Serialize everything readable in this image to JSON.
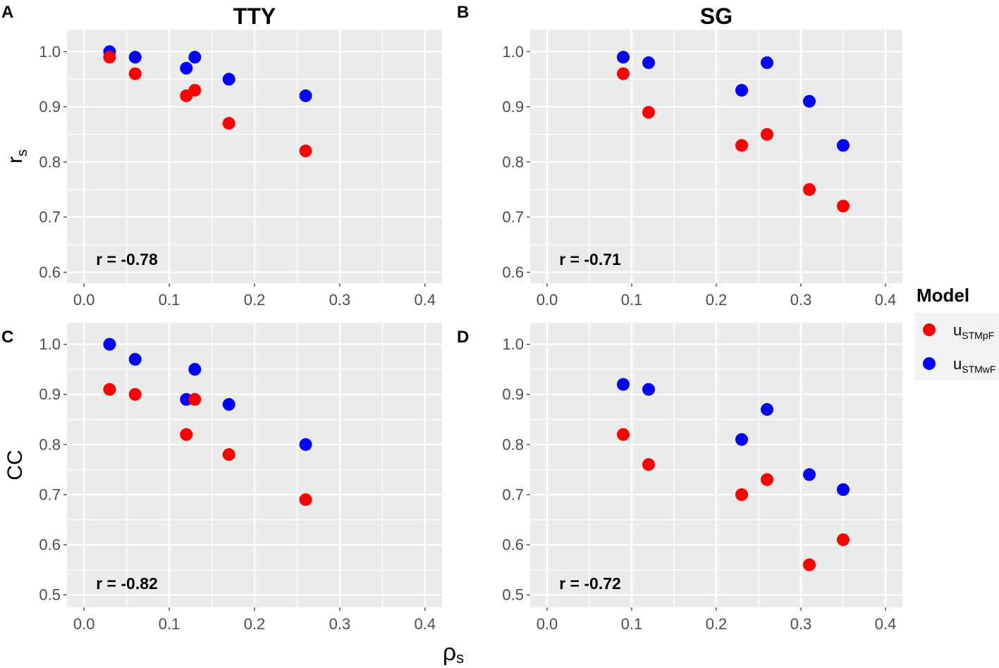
{
  "figure": {
    "xlabel": {
      "main": "ρ",
      "sub": "s"
    }
  },
  "legend": {
    "title": "Model",
    "items": [
      {
        "main": "u",
        "sub": "STMpF",
        "color": "#FF0000"
      },
      {
        "main": "u",
        "sub": "STMwF",
        "color": "#0000FF"
      }
    ]
  },
  "chart_data": [
    {
      "tag": "A",
      "title": "TTY",
      "type": "scatter",
      "ylabel": {
        "main": "r",
        "sub": "s"
      },
      "xlim": [
        -0.02,
        0.42
      ],
      "ylim": [
        0.58,
        1.04
      ],
      "x_ticks": [
        0,
        0.1,
        0.2,
        0.3,
        0.4
      ],
      "x_tick_labels": [
        "0.0",
        "0.1",
        "0.2",
        "0.3",
        "0.4"
      ],
      "y_ticks": [
        0.6,
        0.7,
        0.8,
        0.9,
        1.0
      ],
      "y_tick_labels": [
        "0.6",
        "0.7",
        "0.8",
        "0.9",
        "1.0"
      ],
      "grid": true,
      "annotation": "r = -0.78",
      "series": [
        {
          "legend_item": 0,
          "color": "#FF0000",
          "x": [
            0.03,
            0.06,
            0.12,
            0.13,
            0.17,
            0.26
          ],
          "y": [
            0.99,
            0.96,
            0.92,
            0.93,
            0.87,
            0.82
          ]
        },
        {
          "legend_item": 1,
          "color": "#0000FF",
          "x": [
            0.03,
            0.06,
            0.12,
            0.13,
            0.17,
            0.26
          ],
          "y": [
            1.0,
            0.99,
            0.97,
            0.99,
            0.95,
            0.92
          ]
        }
      ]
    },
    {
      "tag": "B",
      "title": "SG",
      "type": "scatter",
      "xlim": [
        -0.02,
        0.42
      ],
      "ylim": [
        0.58,
        1.04
      ],
      "x_ticks": [
        0,
        0.1,
        0.2,
        0.3,
        0.4
      ],
      "x_tick_labels": [
        "0.0",
        "0.1",
        "0.2",
        "0.3",
        "0.4"
      ],
      "y_ticks": [
        0.6,
        0.7,
        0.8,
        0.9,
        1.0
      ],
      "y_tick_labels": [
        "0.6",
        "0.7",
        "0.8",
        "0.9",
        "1.0"
      ],
      "grid": true,
      "annotation": "r = -0.71",
      "series": [
        {
          "legend_item": 0,
          "color": "#FF0000",
          "x": [
            0.09,
            0.12,
            0.23,
            0.26,
            0.31,
            0.35
          ],
          "y": [
            0.96,
            0.89,
            0.83,
            0.85,
            0.75,
            0.72
          ]
        },
        {
          "legend_item": 1,
          "color": "#0000FF",
          "x": [
            0.09,
            0.12,
            0.23,
            0.26,
            0.31,
            0.35
          ],
          "y": [
            0.99,
            0.98,
            0.93,
            0.98,
            0.91,
            0.83
          ]
        }
      ]
    },
    {
      "tag": "C",
      "type": "scatter",
      "ylabel": {
        "main": "CC"
      },
      "xlim": [
        -0.02,
        0.42
      ],
      "ylim": [
        0.475,
        1.043
      ],
      "x_ticks": [
        0,
        0.1,
        0.2,
        0.3,
        0.4
      ],
      "x_tick_labels": [
        "0.0",
        "0.1",
        "0.2",
        "0.3",
        "0.4"
      ],
      "y_ticks": [
        0.5,
        0.6,
        0.7,
        0.8,
        0.9,
        1.0
      ],
      "y_tick_labels": [
        "0.5",
        "0.6",
        "0.7",
        "0.8",
        "0.9",
        "1.0"
      ],
      "grid": true,
      "annotation": "r = -0.82",
      "series": [
        {
          "legend_item": 0,
          "color": "#FF0000",
          "x": [
            0.03,
            0.06,
            0.12,
            0.13,
            0.17,
            0.26
          ],
          "y": [
            0.91,
            0.9,
            0.82,
            0.89,
            0.78,
            0.69
          ]
        },
        {
          "legend_item": 1,
          "color": "#0000FF",
          "x": [
            0.03,
            0.06,
            0.12,
            0.13,
            0.17,
            0.26
          ],
          "y": [
            1.0,
            0.97,
            0.89,
            0.95,
            0.88,
            0.8
          ]
        }
      ]
    },
    {
      "tag": "D",
      "type": "scatter",
      "xlim": [
        -0.02,
        0.42
      ],
      "ylim": [
        0.475,
        1.043
      ],
      "x_ticks": [
        0,
        0.1,
        0.2,
        0.3,
        0.4
      ],
      "x_tick_labels": [
        "0.0",
        "0.1",
        "0.2",
        "0.3",
        "0.4"
      ],
      "y_ticks": [
        0.5,
        0.6,
        0.7,
        0.8,
        0.9,
        1.0
      ],
      "y_tick_labels": [
        "0.5",
        "0.6",
        "0.7",
        "0.8",
        "0.9",
        "1.0"
      ],
      "grid": true,
      "annotation": "r = -0.72",
      "series": [
        {
          "legend_item": 0,
          "color": "#FF0000",
          "x": [
            0.09,
            0.12,
            0.23,
            0.26,
            0.31,
            0.35
          ],
          "y": [
            0.82,
            0.76,
            0.7,
            0.73,
            0.56,
            0.61
          ]
        },
        {
          "legend_item": 1,
          "color": "#0000FF",
          "x": [
            0.09,
            0.12,
            0.23,
            0.26,
            0.31,
            0.35
          ],
          "y": [
            0.92,
            0.91,
            0.81,
            0.87,
            0.74,
            0.71
          ]
        }
      ]
    }
  ]
}
